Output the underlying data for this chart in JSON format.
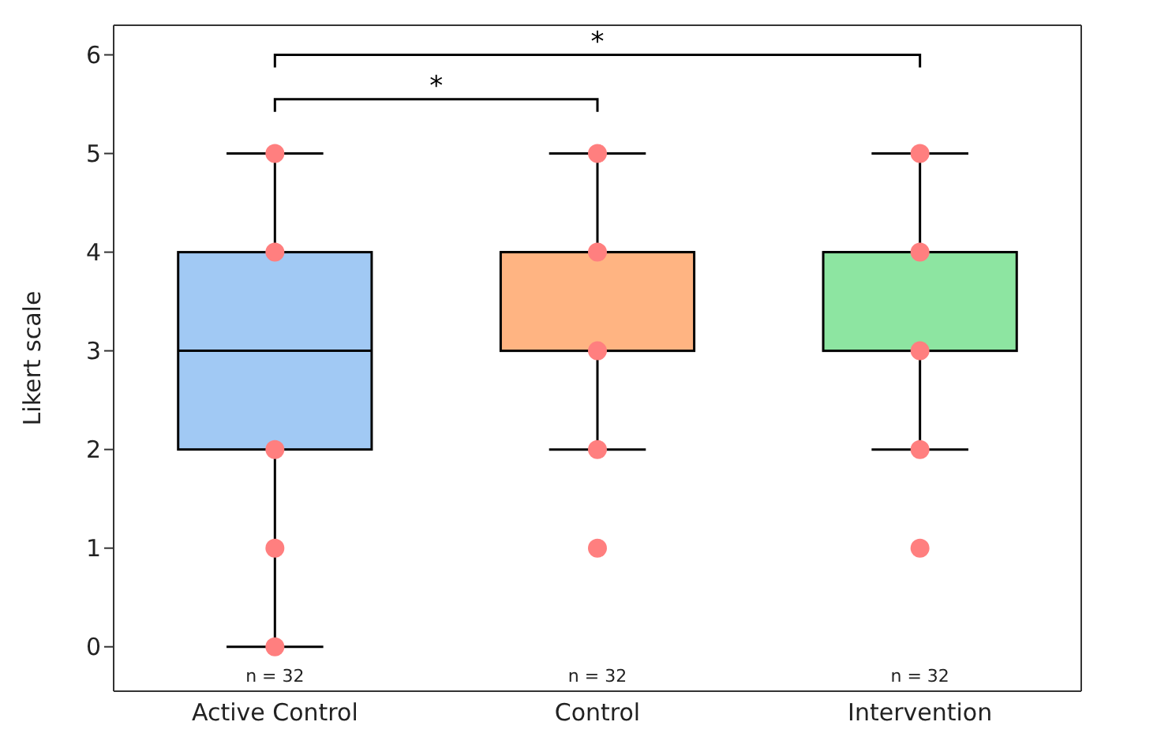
{
  "chart_data": {
    "type": "box",
    "ylabel": "Likert scale",
    "categories": [
      "Active Control",
      "Control",
      "Intervention"
    ],
    "ylim": [
      -0.45,
      6.3
    ],
    "yticks": [
      0,
      1,
      2,
      3,
      4,
      5,
      6
    ],
    "colors": [
      "#a1c9f4",
      "#ffb482",
      "#8de5a1"
    ],
    "boxes": [
      {
        "low": 0,
        "q1": 2,
        "median": 3,
        "q3": 4,
        "high": 5
      },
      {
        "low": 2,
        "q1": 3,
        "median": 4,
        "q3": 4,
        "high": 5
      },
      {
        "low": 2,
        "q1": 3,
        "median": 4,
        "q3": 4,
        "high": 5
      }
    ],
    "series": [
      {
        "type": "scatter",
        "color": "#ff7f7f",
        "marker": "circle",
        "x": [
          "Active Control",
          "Active Control",
          "Active Control",
          "Active Control",
          "Active Control",
          "Control",
          "Control",
          "Control",
          "Control",
          "Control",
          "Intervention",
          "Intervention",
          "Intervention",
          "Intervention",
          "Intervention"
        ],
        "values": [
          5,
          4,
          2,
          1,
          0,
          5,
          4,
          3,
          2,
          1,
          5,
          4,
          3,
          2,
          1
        ]
      }
    ],
    "annotations": [
      "*",
      "*",
      "n = 32",
      "n = 32",
      "n = 32"
    ]
  }
}
